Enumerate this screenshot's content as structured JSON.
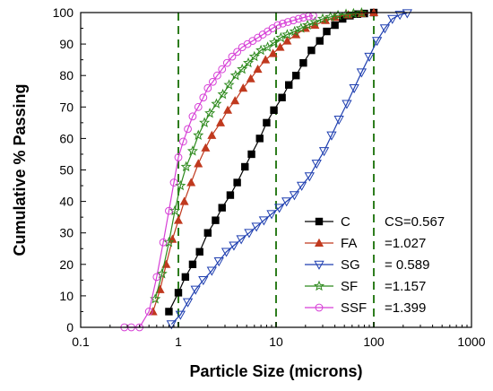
{
  "chart_data": {
    "type": "line",
    "title": "",
    "xlabel": "Particle Size (microns)",
    "ylabel": "Cumulative % Passing",
    "xscale": "log",
    "xlim": [
      0.1,
      1000
    ],
    "ylim": [
      0,
      100
    ],
    "xticks": [
      "0.1",
      "1",
      "10",
      "100",
      "1000"
    ],
    "yticks": [
      "0",
      "10",
      "20",
      "30",
      "40",
      "50",
      "60",
      "70",
      "80",
      "90",
      "100"
    ],
    "grid": false,
    "legend_position": "bottom-right",
    "reference_lines": {
      "type": "vertical dashed",
      "color": "#2e7d1e",
      "x": [
        1,
        10,
        100
      ]
    },
    "series": [
      {
        "name": "C",
        "annotation": "CS=0.567",
        "color": "#000000",
        "marker": "filled-square",
        "points": [
          [
            0.8,
            5
          ],
          [
            1.0,
            11
          ],
          [
            1.18,
            16
          ],
          [
            1.4,
            20
          ],
          [
            1.65,
            24
          ],
          [
            2.0,
            30
          ],
          [
            2.4,
            34
          ],
          [
            2.8,
            38
          ],
          [
            3.4,
            42
          ],
          [
            4.0,
            46
          ],
          [
            4.8,
            51
          ],
          [
            5.6,
            55
          ],
          [
            6.8,
            60
          ],
          [
            8.0,
            65
          ],
          [
            9.5,
            69
          ],
          [
            11.5,
            73
          ],
          [
            13.5,
            77
          ],
          [
            16.0,
            80
          ],
          [
            19,
            84
          ],
          [
            23,
            88
          ],
          [
            28,
            91
          ],
          [
            33,
            94
          ],
          [
            40,
            96
          ],
          [
            48,
            98
          ],
          [
            57,
            99
          ],
          [
            68,
            99.5
          ],
          [
            80,
            99.7
          ],
          [
            100,
            100
          ]
        ]
      },
      {
        "name": "FA",
        "annotation": "=1.027",
        "color": "#c0391e",
        "marker": "filled-triangle-up",
        "points": [
          [
            0.55,
            5
          ],
          [
            0.65,
            12
          ],
          [
            0.75,
            20
          ],
          [
            0.87,
            28
          ],
          [
            1.0,
            34
          ],
          [
            1.15,
            40
          ],
          [
            1.35,
            46
          ],
          [
            1.6,
            52
          ],
          [
            1.9,
            57
          ],
          [
            2.2,
            61
          ],
          [
            2.7,
            65
          ],
          [
            3.2,
            69
          ],
          [
            3.8,
            72
          ],
          [
            4.6,
            76
          ],
          [
            5.5,
            79
          ],
          [
            6.5,
            82
          ],
          [
            7.8,
            85
          ],
          [
            9.3,
            87
          ],
          [
            11,
            89
          ],
          [
            13,
            91
          ],
          [
            16,
            93
          ],
          [
            20,
            95
          ],
          [
            25,
            96
          ],
          [
            32,
            97.5
          ],
          [
            40,
            98.5
          ],
          [
            55,
            99.3
          ],
          [
            75,
            99.7
          ],
          [
            100,
            100
          ]
        ]
      },
      {
        "name": "SG",
        "annotation": "= 0.589",
        "color": "#1f3fb0",
        "marker": "open-triangle-down",
        "points": [
          [
            0.85,
            1
          ],
          [
            1.05,
            4
          ],
          [
            1.25,
            8
          ],
          [
            1.5,
            12
          ],
          [
            1.8,
            15
          ],
          [
            2.2,
            18
          ],
          [
            2.6,
            21
          ],
          [
            3.1,
            24
          ],
          [
            3.7,
            26
          ],
          [
            4.4,
            28
          ],
          [
            5.3,
            30
          ],
          [
            6.3,
            32
          ],
          [
            7.5,
            34
          ],
          [
            9.0,
            36
          ],
          [
            10.8,
            38
          ],
          [
            12.8,
            40
          ],
          [
            15.4,
            42
          ],
          [
            18.3,
            45
          ],
          [
            22,
            48
          ],
          [
            26,
            52
          ],
          [
            31,
            56
          ],
          [
            37,
            61
          ],
          [
            44,
            66
          ],
          [
            53,
            71
          ],
          [
            63,
            76
          ],
          [
            75,
            81
          ],
          [
            90,
            86
          ],
          [
            108,
            91
          ],
          [
            130,
            95
          ],
          [
            155,
            98
          ],
          [
            185,
            99.3
          ],
          [
            220,
            99.8
          ]
        ]
      },
      {
        "name": "SF",
        "annotation": "=1.157",
        "color": "#2e8a1e",
        "marker": "open-star",
        "points": [
          [
            0.58,
            9
          ],
          [
            0.68,
            17
          ],
          [
            0.8,
            27
          ],
          [
            0.92,
            37
          ],
          [
            1.05,
            45
          ],
          [
            1.2,
            51
          ],
          [
            1.4,
            56
          ],
          [
            1.6,
            61
          ],
          [
            1.85,
            65
          ],
          [
            2.1,
            68
          ],
          [
            2.45,
            71
          ],
          [
            2.85,
            74
          ],
          [
            3.3,
            77
          ],
          [
            3.85,
            80
          ],
          [
            4.5,
            82
          ],
          [
            5.2,
            84
          ],
          [
            6.0,
            86
          ],
          [
            7.0,
            88
          ],
          [
            8.2,
            89
          ],
          [
            9.6,
            90.5
          ],
          [
            11.2,
            92
          ],
          [
            13,
            93
          ],
          [
            15.5,
            94
          ],
          [
            18,
            95
          ],
          [
            21,
            96
          ],
          [
            25,
            97
          ],
          [
            30,
            98
          ],
          [
            36,
            98.6
          ],
          [
            43,
            99.1
          ],
          [
            52,
            99.5
          ],
          [
            62,
            99.7
          ],
          [
            75,
            99.9
          ]
        ]
      },
      {
        "name": "SSF",
        "annotation": "=1.399",
        "color": "#d63fd6",
        "marker": "open-circle",
        "points": [
          [
            0.28,
            0
          ],
          [
            0.33,
            0
          ],
          [
            0.4,
            0
          ],
          [
            0.5,
            5
          ],
          [
            0.6,
            16
          ],
          [
            0.7,
            27
          ],
          [
            0.8,
            37
          ],
          [
            0.9,
            46
          ],
          [
            1.0,
            54
          ],
          [
            1.12,
            59
          ],
          [
            1.25,
            63
          ],
          [
            1.4,
            67
          ],
          [
            1.6,
            70
          ],
          [
            1.8,
            73
          ],
          [
            2.0,
            76
          ],
          [
            2.25,
            78
          ],
          [
            2.5,
            80
          ],
          [
            2.8,
            82
          ],
          [
            3.15,
            84
          ],
          [
            3.55,
            86
          ],
          [
            4.0,
            87.5
          ],
          [
            4.5,
            89
          ],
          [
            5.1,
            90
          ],
          [
            5.75,
            91
          ],
          [
            6.5,
            92
          ],
          [
            7.3,
            93
          ],
          [
            8.2,
            94
          ],
          [
            9.2,
            95
          ],
          [
            10.4,
            96
          ],
          [
            11.7,
            96.5
          ],
          [
            13.2,
            97
          ],
          [
            15,
            97.5
          ],
          [
            17,
            98
          ],
          [
            19,
            98.4
          ],
          [
            21.5,
            98.8
          ],
          [
            24,
            99
          ]
        ]
      }
    ]
  }
}
